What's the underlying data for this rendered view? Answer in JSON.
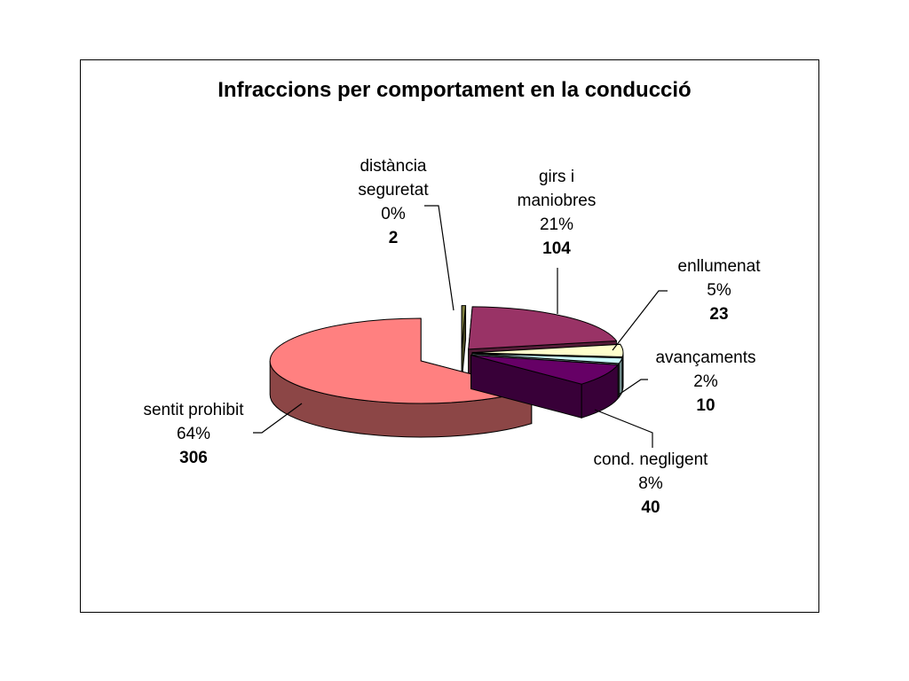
{
  "chart_data": {
    "type": "pie",
    "title": "Infraccions per comportament en la conducció",
    "slices": [
      {
        "key": "distancia",
        "label_lines": [
          "distància",
          "seguretat"
        ],
        "percent": "0%",
        "value": 2,
        "color": "#7f7f3f"
      },
      {
        "key": "girs",
        "label_lines": [
          "girs i",
          "maniobres"
        ],
        "percent": "21%",
        "value": 104,
        "color": "#993366"
      },
      {
        "key": "enllumenat",
        "label_lines": [
          "enllumenat"
        ],
        "percent": "5%",
        "value": 23,
        "color": "#ffffcc"
      },
      {
        "key": "avancaments",
        "label_lines": [
          "avançaments"
        ],
        "percent": "2%",
        "value": 10,
        "color": "#ccffff"
      },
      {
        "key": "negligent",
        "label_lines": [
          "cond. negligent"
        ],
        "percent": "8%",
        "value": 40,
        "color": "#660066"
      },
      {
        "key": "prohibit",
        "label_lines": [
          "sentit prohibit"
        ],
        "percent": "64%",
        "value": 306,
        "color": "#ff8080"
      }
    ]
  }
}
